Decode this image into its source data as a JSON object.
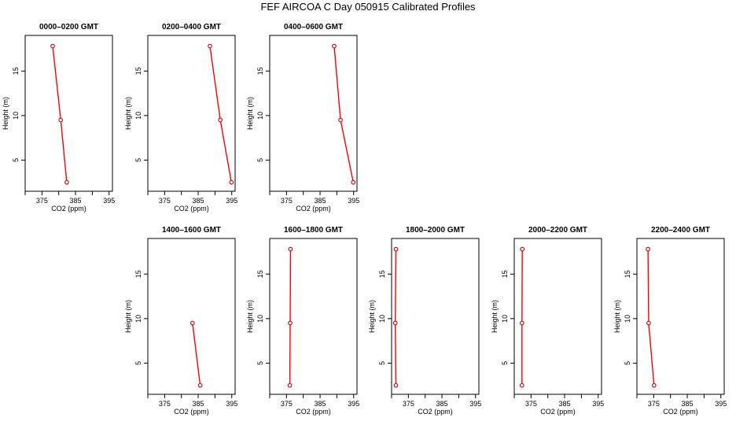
{
  "page": {
    "title": "FEF AIRCOA C  Day 050915  Calibrated Profiles"
  },
  "colors": {
    "line": "#ff0000",
    "marker": "#cc0000",
    "axis": "#000000"
  },
  "chart_data": [
    {
      "type": "line",
      "title": "0000–0200 GMT",
      "xlabel": "CO2 (ppm)",
      "ylabel": "Height (m)",
      "xlim": [
        370,
        396
      ],
      "ylim": [
        1.5,
        19
      ],
      "xticks": [
        375,
        385,
        395
      ],
      "yticks": [
        5,
        10,
        15
      ],
      "series": [
        {
          "x": [
            378.2,
            380.6,
            382.4
          ],
          "y": [
            17.8,
            9.5,
            2.5
          ]
        }
      ]
    },
    {
      "type": "line",
      "title": "0200–0400 GMT",
      "xlabel": "CO2 (ppm)",
      "ylabel": "Height (m)",
      "xlim": [
        370,
        396
      ],
      "ylim": [
        1.5,
        19
      ],
      "xticks": [
        375,
        385,
        395
      ],
      "yticks": [
        5,
        10,
        15
      ],
      "series": [
        {
          "x": [
            388.5,
            391.6,
            394.9
          ],
          "y": [
            17.8,
            9.5,
            2.5
          ]
        }
      ]
    },
    {
      "type": "line",
      "title": "0400–0600 GMT",
      "xlabel": "CO2 (ppm)",
      "ylabel": "Height (m)",
      "xlim": [
        370,
        396
      ],
      "ylim": [
        1.5,
        19
      ],
      "xticks": [
        375,
        385,
        395
      ],
      "yticks": [
        5,
        10,
        15
      ],
      "series": [
        {
          "x": [
            389.2,
            391.1,
            394.9
          ],
          "y": [
            17.8,
            9.5,
            2.5
          ]
        }
      ]
    },
    {
      "type": "line",
      "title": "1400–1600 GMT",
      "xlabel": "CO2 (ppm)",
      "ylabel": "Height (m)",
      "xlim": [
        370,
        396
      ],
      "ylim": [
        1.5,
        19
      ],
      "xticks": [
        375,
        385,
        395
      ],
      "yticks": [
        5,
        10,
        15
      ],
      "series": [
        {
          "x": [
            383.3,
            385.6
          ],
          "y": [
            9.5,
            2.5
          ]
        }
      ]
    },
    {
      "type": "line",
      "title": "1600–1800 GMT",
      "xlabel": "CO2 (ppm)",
      "ylabel": "Height (m)",
      "xlim": [
        370,
        396
      ],
      "ylim": [
        1.5,
        19
      ],
      "xticks": [
        375,
        385,
        395
      ],
      "yticks": [
        5,
        10,
        15
      ],
      "series": [
        {
          "x": [
            376.2,
            376.1,
            376.0
          ],
          "y": [
            17.8,
            9.5,
            2.5
          ]
        }
      ]
    },
    {
      "type": "line",
      "title": "1800–2000 GMT",
      "xlabel": "CO2 (ppm)",
      "ylabel": "Height (m)",
      "xlim": [
        370,
        396
      ],
      "ylim": [
        1.5,
        19
      ],
      "xticks": [
        375,
        385,
        395
      ],
      "yticks": [
        5,
        10,
        15
      ],
      "series": [
        {
          "x": [
            371.3,
            371.1,
            371.3
          ],
          "y": [
            17.8,
            9.5,
            2.5
          ]
        }
      ]
    },
    {
      "type": "line",
      "title": "2000–2200 GMT",
      "xlabel": "CO2 (ppm)",
      "ylabel": "Height (m)",
      "xlim": [
        370,
        396
      ],
      "ylim": [
        1.5,
        19
      ],
      "xticks": [
        375,
        385,
        395
      ],
      "yticks": [
        5,
        10,
        15
      ],
      "series": [
        {
          "x": [
            372.4,
            372.3,
            372.3
          ],
          "y": [
            17.8,
            9.5,
            2.5
          ]
        }
      ]
    },
    {
      "type": "line",
      "title": "2200–2400 GMT",
      "xlabel": "CO2 (ppm)",
      "ylabel": "Height (m)",
      "xlim": [
        370,
        396
      ],
      "ylim": [
        1.5,
        19
      ],
      "xticks": [
        375,
        385,
        395
      ],
      "yticks": [
        5,
        10,
        15
      ],
      "series": [
        {
          "x": [
            373.3,
            373.5,
            375.1
          ],
          "y": [
            17.8,
            9.5,
            2.5
          ]
        }
      ]
    }
  ]
}
